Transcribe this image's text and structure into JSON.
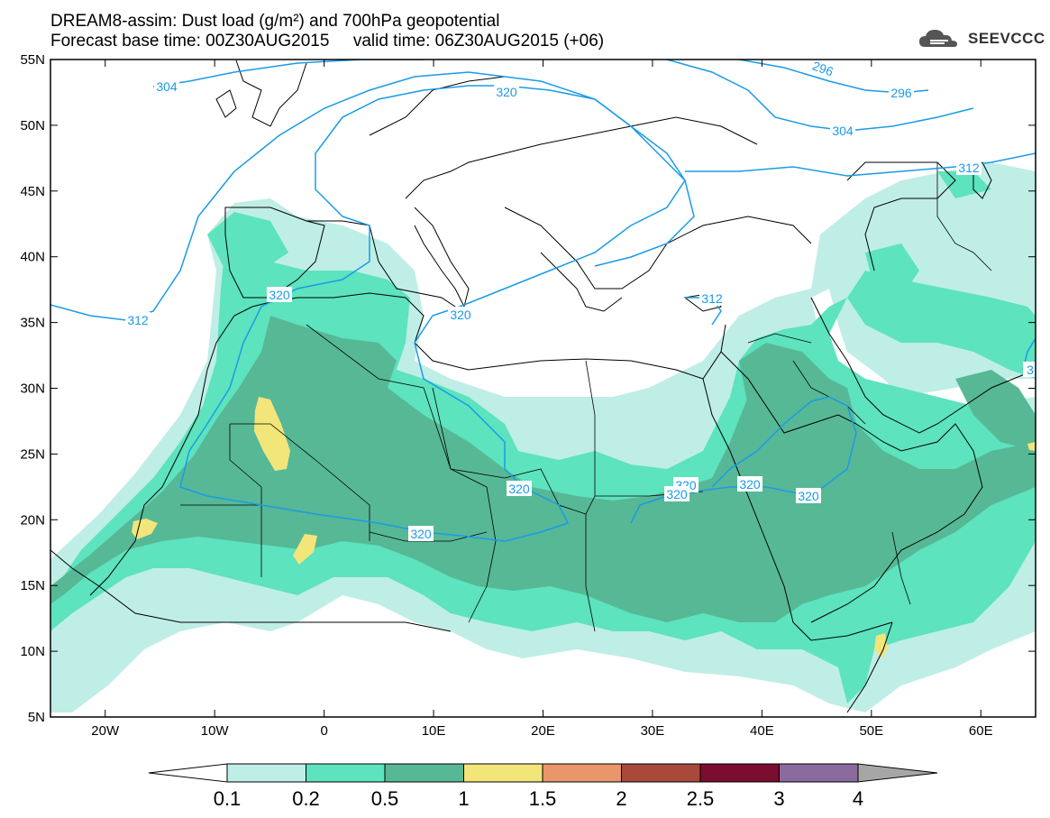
{
  "title": {
    "line1": "DREAM8-assim: Dust load (g/m²) and 700hPa geopotential",
    "line2": "Forecast base time: 00Z30AUG2015     valid time: 06Z30AUG2015 (+06)"
  },
  "logo": {
    "text": "SEEVCCC",
    "icon": "cloud-logo-icon"
  },
  "axes": {
    "lat_labels": [
      "55N",
      "50N",
      "45N",
      "40N",
      "35N",
      "30N",
      "25N",
      "20N",
      "15N",
      "10N",
      "5N"
    ],
    "lat_values": [
      55,
      50,
      45,
      40,
      35,
      30,
      25,
      20,
      15,
      10,
      5
    ],
    "lon_labels": [
      "20W",
      "10W",
      "0",
      "10E",
      "20E",
      "30E",
      "40E",
      "50E",
      "60E"
    ],
    "lon_values": [
      -20,
      -10,
      0,
      10,
      20,
      30,
      40,
      50,
      60
    ],
    "lon_range": [
      -25,
      65
    ],
    "lat_range": [
      5,
      55
    ]
  },
  "contour_labels": [
    "304",
    "320",
    "296",
    "296",
    "304",
    "312",
    "312",
    "320",
    "320",
    "312",
    "320",
    "320",
    "320",
    "320",
    "320",
    "320",
    "3"
  ],
  "colorbar": {
    "labels": [
      "0.1",
      "0.2",
      "0.5",
      "1",
      "1.5",
      "2",
      "2.5",
      "3",
      "4"
    ],
    "colors": [
      "#ffffff",
      "#bfeee6",
      "#5de3bd",
      "#57b896",
      "#f2e67b",
      "#e8966a",
      "#a8493b",
      "#7b0d2e",
      "#8b6a9e",
      "#a6a6a6"
    ]
  },
  "colors": {
    "contour": "#1a9be8",
    "dust_01": "#bfeee6",
    "dust_02": "#5de3bd",
    "dust_05": "#57b896",
    "dust_1": "#f2e67b"
  }
}
